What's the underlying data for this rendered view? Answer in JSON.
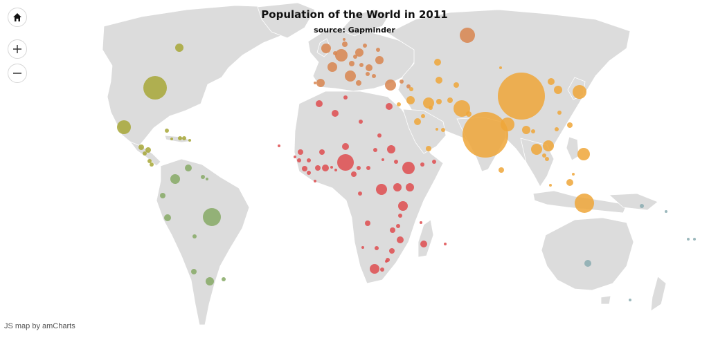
{
  "map": {
    "title": "Population of the World in 2011",
    "subtitle": "source: Gapminder",
    "credit": "JS map by amCharts",
    "land_color": "#dcdcdc",
    "border_color": "#ffffff"
  },
  "controls": {
    "home_icon": "home-icon",
    "zoom_in_icon": "plus-icon",
    "zoom_out_icon": "minus-icon"
  },
  "region_colors": {
    "north_america": "#a7a737",
    "south_america": "#86a965",
    "europe": "#d8854f",
    "africa": "#de4c4f",
    "asia": "#eea638",
    "oceania": "#8aabb0"
  }
}
